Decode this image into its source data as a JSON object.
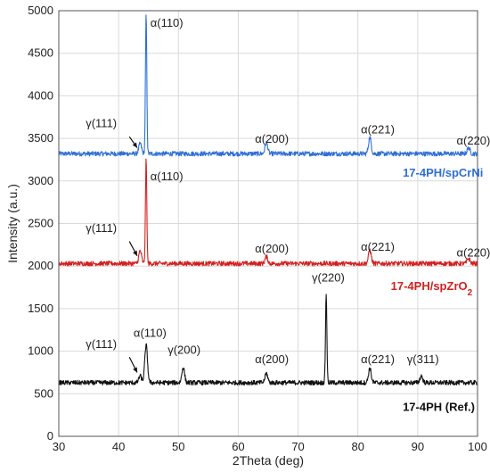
{
  "chart_data": {
    "type": "line",
    "xlabel": "2Theta (deg)",
    "ylabel": "Intensity (a.u.)",
    "xlim": [
      30,
      100
    ],
    "ylim": [
      0,
      5000
    ],
    "x_ticks": [
      30,
      40,
      50,
      60,
      70,
      80,
      90,
      100
    ],
    "y_ticks": [
      0,
      500,
      1000,
      1500,
      2000,
      2500,
      3000,
      3500,
      4000,
      4500,
      5000
    ],
    "grid": true,
    "series": [
      {
        "name": "17-4PH/spCrNi",
        "label_parts": [
          "17-4PH/spCrNi"
        ],
        "color": "#2f6fd6",
        "baseline": 3320,
        "peaks": [
          {
            "x": 43.6,
            "height": 120
          },
          {
            "x": 44.6,
            "height": 1630
          },
          {
            "x": 64.7,
            "height": 130
          },
          {
            "x": 82.0,
            "height": 190
          },
          {
            "x": 98.5,
            "height": 70
          }
        ]
      },
      {
        "name": "17-4PH/spZrO2",
        "label_parts": [
          "17-4PH/spZrO",
          "2"
        ],
        "color": "#d42020",
        "baseline": 2030,
        "peaks": [
          {
            "x": 43.6,
            "height": 150
          },
          {
            "x": 44.6,
            "height": 1220
          },
          {
            "x": 64.7,
            "height": 80
          },
          {
            "x": 82.0,
            "height": 160
          },
          {
            "x": 98.5,
            "height": 60
          }
        ]
      },
      {
        "name": "17-4PH (Ref.)",
        "label_parts": [
          "17-4PH (Ref.)"
        ],
        "color": "#111111",
        "baseline": 630,
        "peaks": [
          {
            "x": 43.6,
            "height": 80
          },
          {
            "x": 44.6,
            "height": 440
          },
          {
            "x": 50.8,
            "height": 180
          },
          {
            "x": 64.7,
            "height": 110
          },
          {
            "x": 74.7,
            "height": 1050
          },
          {
            "x": 82.0,
            "height": 170
          },
          {
            "x": 90.6,
            "height": 80
          }
        ]
      }
    ],
    "annotations": [
      {
        "text": "α(110)",
        "x": 45.3,
        "y": 4810
      },
      {
        "text": "γ(111)",
        "x": 34.5,
        "y": 3630
      },
      {
        "text": "α(200)",
        "x": 62.8,
        "y": 3450
      },
      {
        "text": "α(221)",
        "x": 80.5,
        "y": 3560
      },
      {
        "text": "α(220)",
        "x": 96.5,
        "y": 3430
      },
      {
        "text": "α(110)",
        "x": 45.3,
        "y": 3010
      },
      {
        "text": "γ(111)",
        "x": 34.5,
        "y": 2400
      },
      {
        "text": "α(200)",
        "x": 62.8,
        "y": 2160
      },
      {
        "text": "α(221)",
        "x": 80.5,
        "y": 2180
      },
      {
        "text": "α(220)",
        "x": 96.5,
        "y": 2110
      },
      {
        "text": "α(110)",
        "x": 42.5,
        "y": 1170
      },
      {
        "text": "γ(111)",
        "x": 34.5,
        "y": 1040
      },
      {
        "text": "γ(200)",
        "x": 48.2,
        "y": 970
      },
      {
        "text": "γ(220)",
        "x": 72.3,
        "y": 1820
      },
      {
        "text": "α(200)",
        "x": 62.8,
        "y": 860
      },
      {
        "text": "α(221)",
        "x": 80.5,
        "y": 860
      },
      {
        "text": "γ(311)",
        "x": 88.2,
        "y": 860
      }
    ],
    "arrows": [
      {
        "from": [
          41.8,
          3520
        ],
        "to": [
          43.1,
          3390
        ]
      },
      {
        "from": [
          41.8,
          2290
        ],
        "to": [
          43.1,
          2120
        ]
      },
      {
        "from": [
          41.8,
          930
        ],
        "to": [
          43.1,
          750
        ]
      }
    ],
    "series_labels": [
      {
        "series": 0,
        "x": 87.5,
        "y": 3050
      },
      {
        "series": 1,
        "x": 85.5,
        "y": 1720
      },
      {
        "series": 2,
        "x": 87.5,
        "y": 300
      }
    ]
  }
}
